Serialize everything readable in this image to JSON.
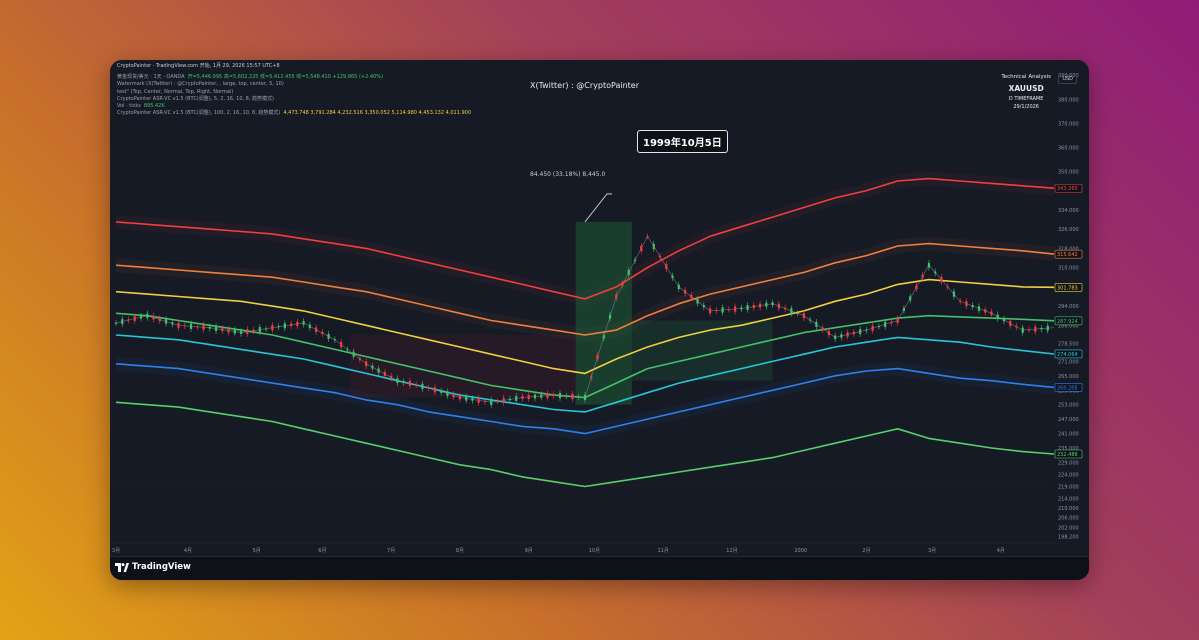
{
  "window": {
    "top_line": "CryptoPainter · TradingView.com 开始, 1月 29, 2026 15:57 UTC+8",
    "legend_rows": [
      {
        "text": "黄金现货/美元 · 1天 · OANDA",
        "values": "开=5,446.995  高=5,602.225  低=5,412.455  收=5,548.410  +129.865 (+2.40%)"
      },
      {
        "text": "Watermark (X(Twitter) : @CryptoPainter, , large, top, center, 5, 10)",
        "values": ""
      },
      {
        "text": "test\" (Top, Center, Normal, Top, Right, Normal)",
        "values": ""
      },
      {
        "text": "CryptoPainter ASR-VC v1.5 (BTC(调整), 5, 2, 16, 10, 8, 趋势模式)",
        "values": ""
      },
      {
        "text": "Vol · ticks",
        "values": "895.42K"
      },
      {
        "text": "CryptoPainter ASR-VC v1.5 (BTC(调整), 100, 2, 16, 10, 8, 趋势模式)",
        "values": "4,473.748  3,791.284  4,232.516  3,350.052  5,114.980  4,453.132  4,011.900"
      }
    ],
    "watermark": "X(Twitter) : @CryptoPainter",
    "top_right": {
      "t1": "Technical Analysis",
      "t2": "XAUUSD",
      "t3": "D TIMEFRAME",
      "t4": "29/1/2026"
    },
    "currency": "USD",
    "callout": "1999年10月5日",
    "measure_label": "84.450 (33.18%) 8,445.0",
    "logo_text": "TradingView"
  },
  "chart_data": {
    "type": "line",
    "title": "",
    "xlabel": "",
    "ylabel": "",
    "x": [
      0,
      10,
      20,
      30,
      40,
      50,
      60,
      70,
      80,
      90,
      100,
      110,
      120,
      130,
      140,
      150,
      160,
      170,
      180,
      190,
      200,
      210,
      220,
      230,
      240,
      250,
      260,
      270,
      280,
      290,
      300
    ],
    "x_ticks": [
      {
        "x": 0,
        "label": "3月"
      },
      {
        "x": 23,
        "label": "4月"
      },
      {
        "x": 45,
        "label": "5月"
      },
      {
        "x": 66,
        "label": "6月"
      },
      {
        "x": 88,
        "label": "7月"
      },
      {
        "x": 110,
        "label": "8月"
      },
      {
        "x": 132,
        "label": "9月"
      },
      {
        "x": 153,
        "label": "10月"
      },
      {
        "x": 175,
        "label": "11月"
      },
      {
        "x": 197,
        "label": "12月"
      },
      {
        "x": 219,
        "label": "2000"
      },
      {
        "x": 240,
        "label": "2月"
      },
      {
        "x": 261,
        "label": "3月"
      },
      {
        "x": 283,
        "label": "4月"
      }
    ],
    "ylim": [
      195.5,
      390.5
    ],
    "y_ticks": [
      198.2,
      202.0,
      206.0,
      210.0,
      214.0,
      219.0,
      224.0,
      229.0,
      235.0,
      241.0,
      247.0,
      253.0,
      259.0,
      265.0,
      271.0,
      278.5,
      286.0,
      294.0,
      302.0,
      310.0,
      318.0,
      326.0,
      334.0,
      342.0,
      350.0,
      360.0,
      370.0,
      380.0,
      390.0
    ],
    "series": [
      {
        "color": "#ef3f3f",
        "label": "343.265",
        "values": [
          329,
          328,
          327,
          326,
          325,
          324,
          322,
          320,
          318,
          315,
          312,
          309,
          306,
          303,
          300,
          297,
          302,
          310,
          317,
          323,
          327,
          331,
          335,
          339,
          342,
          346,
          347,
          346,
          345,
          344,
          343
        ]
      },
      {
        "color": "#f07f3c",
        "label": "315.642",
        "values": [
          311,
          310,
          309,
          308,
          307,
          306,
          304,
          302,
          300,
          297,
          294,
          291,
          288,
          286,
          284,
          282,
          284,
          290,
          295,
          299,
          302,
          305,
          308,
          312,
          315,
          319,
          320,
          319,
          318,
          317,
          315.6
        ]
      },
      {
        "color": "#f0cf40",
        "label": "301.783",
        "values": [
          300,
          299,
          298,
          297,
          296,
          294,
          292,
          289,
          286,
          283,
          280,
          277,
          274,
          271,
          268,
          266,
          272,
          277,
          281,
          284,
          286,
          289,
          292,
          296,
          299,
          303,
          305,
          304,
          303,
          302,
          301.8
        ]
      },
      {
        "color": "#43c06a",
        "label": "287.924",
        "values": [
          291,
          290,
          288,
          286,
          284,
          282,
          279,
          276,
          273,
          270,
          267,
          264,
          261,
          259,
          257,
          256,
          262,
          268,
          271,
          274,
          277,
          280,
          283,
          285,
          287,
          289,
          290,
          289.5,
          289,
          288.5,
          287.9
        ]
      },
      {
        "color": "#26c6da",
        "label": "274.064",
        "values": [
          282,
          281,
          280,
          278,
          276,
          274,
          272,
          269,
          266,
          263,
          260,
          257,
          255,
          253,
          251,
          250,
          254,
          258,
          262,
          265,
          268,
          271,
          274,
          277,
          279,
          281,
          280,
          279,
          277,
          275.5,
          274.1
        ]
      },
      {
        "color": "#2f80ed",
        "label": "260.205",
        "values": [
          270,
          269,
          268,
          266,
          264,
          262,
          260,
          258,
          255,
          253,
          250,
          248,
          246,
          244,
          243,
          241,
          244,
          247,
          250,
          253,
          256,
          259,
          262,
          265,
          267,
          268,
          266,
          264,
          263,
          261.5,
          260.2
        ]
      },
      {
        "color": "#57cf6a",
        "label": "232.486",
        "values": [
          254,
          253,
          252,
          250,
          248,
          246,
          243,
          240,
          237,
          234,
          231,
          228,
          226,
          223,
          221,
          219,
          221,
          223,
          225,
          227,
          229,
          231,
          234,
          237,
          240,
          243,
          239,
          237,
          235,
          233.5,
          232.5
        ]
      }
    ],
    "price": [
      287,
      290,
      286,
      285,
      283,
      285,
      287,
      280,
      270,
      263,
      260,
      256,
      254,
      256,
      257,
      256,
      298,
      323,
      302,
      292,
      293,
      295,
      290,
      281,
      284,
      288,
      311,
      296,
      291,
      284,
      285
    ],
    "last_price": "274.064"
  }
}
